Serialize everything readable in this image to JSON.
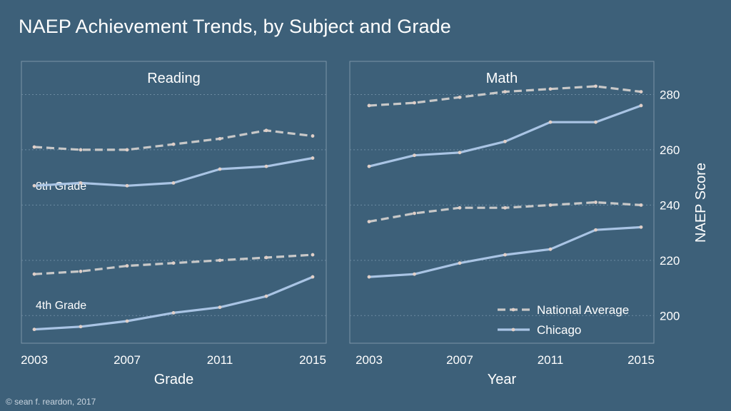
{
  "title": "NAEP Achievement Trends, by Subject and Grade",
  "copyright": "© sean f. reardon, 2017",
  "colors": {
    "background": "#3d6079",
    "national": "#c8c8c8",
    "chicago": "#a9c4e4",
    "point": "#e0cfc8"
  },
  "chart_data": [
    {
      "type": "line",
      "title": "Reading",
      "xlabel": "Grade",
      "ylabel": "",
      "x": [
        2003,
        2005,
        2007,
        2009,
        2011,
        2013,
        2015
      ],
      "xticks": [
        "2003",
        "2007",
        "2011",
        "2015"
      ],
      "xlim": [
        2003,
        2015
      ],
      "ylim": [
        190,
        292
      ],
      "grid_y": [
        200,
        220,
        240,
        260,
        280
      ],
      "group_labels": [
        "8th Grade",
        "4th Grade"
      ],
      "series": [
        {
          "name": "National Average",
          "grade": "8th Grade",
          "style": "dashed",
          "values": [
            261,
            260,
            260,
            262,
            264,
            267,
            265
          ]
        },
        {
          "name": "Chicago",
          "grade": "8th Grade",
          "style": "solid",
          "values": [
            247,
            248,
            247,
            248,
            253,
            254,
            257
          ]
        },
        {
          "name": "National Average",
          "grade": "4th Grade",
          "style": "dashed",
          "values": [
            215,
            216,
            218,
            219,
            220,
            221,
            222
          ]
        },
        {
          "name": "Chicago",
          "grade": "4th Grade",
          "style": "solid",
          "values": [
            195,
            196,
            198,
            201,
            203,
            207,
            214
          ]
        }
      ]
    },
    {
      "type": "line",
      "title": "Math",
      "xlabel": "Year",
      "ylabel": "NAEP Score",
      "x": [
        2003,
        2005,
        2007,
        2009,
        2011,
        2013,
        2015
      ],
      "xticks": [
        "2003",
        "2007",
        "2011",
        "2015"
      ],
      "yticks": [
        "200",
        "220",
        "240",
        "260",
        "280"
      ],
      "xlim": [
        2003,
        2015
      ],
      "ylim": [
        190,
        292
      ],
      "grid_y": [
        200,
        220,
        240,
        260,
        280
      ],
      "legend": {
        "position": "bottom-right",
        "entries": [
          "National Average",
          "Chicago"
        ]
      },
      "series": [
        {
          "name": "National Average",
          "grade": "8th Grade",
          "style": "dashed",
          "values": [
            276,
            277,
            279,
            281,
            282,
            283,
            281
          ]
        },
        {
          "name": "Chicago",
          "grade": "8th Grade",
          "style": "solid",
          "values": [
            254,
            258,
            259,
            263,
            270,
            270,
            276
          ]
        },
        {
          "name": "National Average",
          "grade": "4th Grade",
          "style": "dashed",
          "values": [
            234,
            237,
            239,
            239,
            240,
            241,
            240
          ]
        },
        {
          "name": "Chicago",
          "grade": "4th Grade",
          "style": "solid",
          "values": [
            214,
            215,
            219,
            222,
            224,
            231,
            232
          ]
        }
      ]
    }
  ]
}
